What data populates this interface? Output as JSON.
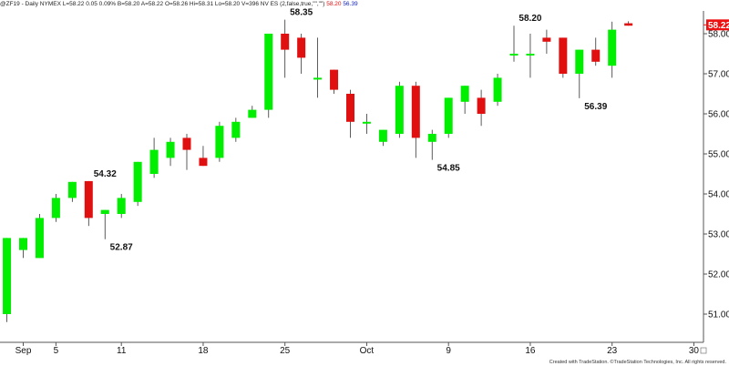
{
  "header": {
    "symbol_info": "@ZF19 - Daily NYMEX L=58.22 0.05 0.09%",
    "ohlc_text": "B=58.20 A=58.22 O=58.26 Hi=58.31 Lo=58.20 V=396 NV ES (2,false,true,\"\",\"\")",
    "ind_value_1": "58.20",
    "ind_value_2": "56.39"
  },
  "credit": "Created with TradeStation. ©TradeStation Technologies, Inc. All rights reserved.",
  "last_price": "58.22",
  "colors": {
    "up": "#00ee00",
    "down": "#e01010",
    "last_price_box": "#ee1111"
  },
  "chart_data": {
    "type": "candlestick",
    "ylim": [
      50.5,
      58.9
    ],
    "y_ticks": [
      "51.00",
      "52.00",
      "53.00",
      "54.00",
      "55.00",
      "56.00",
      "57.00",
      "58.00"
    ],
    "x_tick_labels": [
      {
        "label": "Sep",
        "day": 0
      },
      {
        "label": "5",
        "day": 2
      },
      {
        "label": "11",
        "day": 6
      },
      {
        "label": "18",
        "day": 11
      },
      {
        "label": "25",
        "day": 16
      },
      {
        "label": "Oct",
        "day": 21
      },
      {
        "label": "9",
        "day": 26
      },
      {
        "label": "16",
        "day": 31
      },
      {
        "label": "23",
        "day": 36
      },
      {
        "label": "30",
        "day": 41
      }
    ],
    "annotations": [
      {
        "text": "54.32",
        "day": 5,
        "value": 54.32,
        "pos": "above"
      },
      {
        "text": "52.87",
        "day": 6,
        "value": 52.87,
        "pos": "below"
      },
      {
        "text": "58.35",
        "day": 17,
        "value": 58.35,
        "pos": "above"
      },
      {
        "text": "54.85",
        "day": 26,
        "value": 54.85,
        "pos": "below"
      },
      {
        "text": "58.20",
        "day": 31,
        "value": 58.2,
        "pos": "above"
      },
      {
        "text": "56.39",
        "day": 35,
        "value": 56.39,
        "pos": "below"
      }
    ],
    "candles": [
      {
        "day": -1,
        "o": 51.0,
        "h": 52.9,
        "l": 50.8,
        "c": 52.9
      },
      {
        "day": 0,
        "o": 52.6,
        "h": 52.9,
        "l": 52.4,
        "c": 52.9
      },
      {
        "day": 1,
        "o": 52.4,
        "h": 53.5,
        "l": 52.4,
        "c": 53.4
      },
      {
        "day": 2,
        "o": 53.4,
        "h": 54.0,
        "l": 53.3,
        "c": 53.9
      },
      {
        "day": 3,
        "o": 53.9,
        "h": 54.3,
        "l": 53.8,
        "c": 54.3
      },
      {
        "day": 4,
        "o": 54.32,
        "h": 54.32,
        "l": 53.2,
        "c": 53.4
      },
      {
        "day": 5,
        "o": 53.5,
        "h": 53.6,
        "l": 52.87,
        "c": 53.6
      },
      {
        "day": 6,
        "o": 53.5,
        "h": 54.0,
        "l": 53.4,
        "c": 53.9
      },
      {
        "day": 7,
        "o": 53.8,
        "h": 54.8,
        "l": 53.7,
        "c": 54.8
      },
      {
        "day": 8,
        "o": 54.5,
        "h": 55.4,
        "l": 54.4,
        "c": 55.1
      },
      {
        "day": 9,
        "o": 54.9,
        "h": 55.4,
        "l": 54.7,
        "c": 55.3
      },
      {
        "day": 10,
        "o": 55.4,
        "h": 55.5,
        "l": 54.6,
        "c": 55.1
      },
      {
        "day": 11,
        "o": 54.9,
        "h": 55.2,
        "l": 54.7,
        "c": 54.7
      },
      {
        "day": 12,
        "o": 54.9,
        "h": 55.8,
        "l": 54.8,
        "c": 55.7
      },
      {
        "day": 13,
        "o": 55.4,
        "h": 55.9,
        "l": 55.3,
        "c": 55.8
      },
      {
        "day": 14,
        "o": 55.9,
        "h": 56.2,
        "l": 55.9,
        "c": 56.1
      },
      {
        "day": 15,
        "o": 56.1,
        "h": 58.0,
        "l": 55.9,
        "c": 58.0
      },
      {
        "day": 16,
        "o": 58.0,
        "h": 58.35,
        "l": 56.9,
        "c": 57.6
      },
      {
        "day": 17,
        "o": 57.9,
        "h": 58.0,
        "l": 57.0,
        "c": 57.4
      },
      {
        "day": 18,
        "o": 56.9,
        "h": 57.9,
        "l": 56.4,
        "c": 56.9
      },
      {
        "day": 19,
        "o": 57.1,
        "h": 57.1,
        "l": 56.5,
        "c": 56.6
      },
      {
        "day": 20,
        "o": 56.5,
        "h": 56.6,
        "l": 55.4,
        "c": 55.8
      },
      {
        "day": 21,
        "o": 55.8,
        "h": 56.0,
        "l": 55.5,
        "c": 55.8
      },
      {
        "day": 22,
        "o": 55.3,
        "h": 55.6,
        "l": 55.2,
        "c": 55.6
      },
      {
        "day": 23,
        "o": 55.5,
        "h": 56.8,
        "l": 55.4,
        "c": 56.7
      },
      {
        "day": 24,
        "o": 56.7,
        "h": 56.8,
        "l": 54.9,
        "c": 55.4
      },
      {
        "day": 25,
        "o": 55.3,
        "h": 55.6,
        "l": 54.85,
        "c": 55.5
      },
      {
        "day": 26,
        "o": 55.5,
        "h": 56.4,
        "l": 55.4,
        "c": 56.4
      },
      {
        "day": 27,
        "o": 56.3,
        "h": 56.7,
        "l": 56.0,
        "c": 56.7
      },
      {
        "day": 28,
        "o": 56.4,
        "h": 56.6,
        "l": 55.7,
        "c": 56.0
      },
      {
        "day": 29,
        "o": 56.3,
        "h": 57.0,
        "l": 56.2,
        "c": 56.9
      },
      {
        "day": 30,
        "o": 57.5,
        "h": 58.2,
        "l": 57.3,
        "c": 57.5
      },
      {
        "day": 31,
        "o": 57.5,
        "h": 58.0,
        "l": 56.9,
        "c": 57.5
      },
      {
        "day": 32,
        "o": 57.9,
        "h": 58.1,
        "l": 57.5,
        "c": 57.8
      },
      {
        "day": 33,
        "o": 57.9,
        "h": 57.9,
        "l": 56.9,
        "c": 57.0
      },
      {
        "day": 34,
        "o": 57.0,
        "h": 57.6,
        "l": 56.39,
        "c": 57.6
      },
      {
        "day": 35,
        "o": 57.6,
        "h": 57.9,
        "l": 57.2,
        "c": 57.3
      },
      {
        "day": 36,
        "o": 57.2,
        "h": 58.3,
        "l": 56.9,
        "c": 58.1
      },
      {
        "day": 37,
        "o": 58.26,
        "h": 58.31,
        "l": 58.2,
        "c": 58.2
      }
    ]
  }
}
